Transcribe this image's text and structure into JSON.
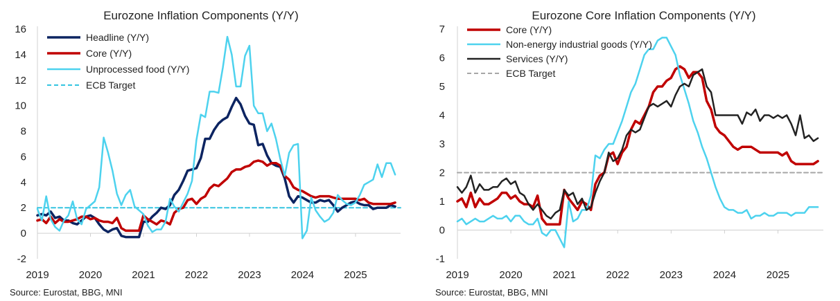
{
  "chart_data": [
    {
      "type": "line",
      "title": "Eurozone Inflation Components (Y/Y)",
      "source": "Source: Eurostat, BBG, MNI",
      "ylim": [
        -2,
        16
      ],
      "yticks": [
        -2,
        0,
        2,
        4,
        6,
        8,
        10,
        12,
        14,
        16
      ],
      "xlim": [
        2019.0,
        2025.85
      ],
      "xticks": [
        "2019",
        "2020",
        "2021",
        "2022",
        "2023",
        "2024",
        "2025"
      ],
      "legend_position": "top-left",
      "colors": {
        "headline": "#0c2461",
        "core": "#c00000",
        "unprocessed": "#4dd2ee",
        "target": "#33c4e0"
      },
      "series": [
        {
          "key": "headline",
          "name": "Headline (Y/Y)",
          "start": 2019.0,
          "step": 0.0833,
          "values": [
            1.4,
            1.5,
            1.4,
            1.7,
            1.2,
            1.3,
            1.0,
            1.0,
            0.8,
            0.7,
            1.0,
            1.3,
            1.4,
            1.2,
            0.7,
            0.3,
            0.1,
            0.3,
            0.4,
            -0.2,
            -0.3,
            -0.3,
            -0.3,
            -0.3,
            0.9,
            0.9,
            1.3,
            1.6,
            2.0,
            1.9,
            2.2,
            3.0,
            3.4,
            4.1,
            4.9,
            5.0,
            5.1,
            5.9,
            7.4,
            7.4,
            8.1,
            8.6,
            8.9,
            9.1,
            9.9,
            10.6,
            10.1,
            9.2,
            8.6,
            8.5,
            6.9,
            7.0,
            6.1,
            5.5,
            5.3,
            5.2,
            4.3,
            2.9,
            2.4,
            2.9,
            2.8,
            2.6,
            2.4,
            2.4,
            2.6,
            2.5,
            2.6,
            2.2,
            1.7,
            2.0,
            2.2,
            2.4,
            2.5,
            2.3,
            2.2,
            2.2,
            1.9,
            2.0,
            2.0,
            2.0,
            2.2,
            2.1
          ]
        },
        {
          "key": "core",
          "name": "Core (Y/Y)",
          "start": 2019.0,
          "step": 0.0833,
          "values": [
            1.0,
            1.1,
            0.8,
            1.3,
            0.8,
            1.1,
            0.9,
            0.9,
            1.0,
            1.1,
            1.3,
            1.3,
            1.1,
            1.2,
            1.0,
            0.9,
            0.9,
            0.8,
            1.2,
            0.4,
            0.2,
            0.2,
            0.2,
            0.2,
            1.4,
            1.1,
            0.9,
            0.7,
            1.0,
            0.9,
            0.7,
            1.6,
            1.9,
            2.0,
            2.6,
            2.7,
            2.3,
            2.7,
            2.9,
            3.5,
            3.8,
            3.7,
            4.0,
            4.3,
            4.8,
            5.0,
            5.0,
            5.2,
            5.3,
            5.6,
            5.7,
            5.6,
            5.3,
            5.5,
            5.5,
            5.3,
            4.5,
            4.2,
            3.6,
            3.4,
            3.3,
            3.1,
            2.9,
            2.8,
            2.9,
            2.9,
            2.9,
            2.8,
            2.7,
            2.7,
            2.7,
            2.7,
            2.7,
            2.6,
            2.7,
            2.4,
            2.3,
            2.3,
            2.3,
            2.3,
            2.3,
            2.4
          ]
        },
        {
          "key": "unprocessed",
          "name": "Unprocessed food (Y/Y)",
          "start": 2019.0,
          "step": 0.0833,
          "values": [
            1.9,
            1.0,
            2.9,
            1.1,
            0.5,
            0.2,
            1.0,
            1.4,
            2.5,
            1.1,
            0.7,
            1.9,
            2.2,
            2.5,
            3.6,
            7.5,
            6.3,
            4.9,
            3.1,
            2.2,
            3.0,
            3.4,
            2.1,
            1.8,
            1.5,
            0.6,
            0.1,
            0.3,
            0.3,
            0.9,
            2.7,
            2.1,
            1.7,
            2.4,
            3.1,
            4.1,
            7.3,
            9.3,
            9.1,
            11.1,
            11.1,
            11.0,
            13.0,
            15.4,
            14.0,
            11.5,
            11.5,
            13.9,
            14.7,
            10.0,
            9.4,
            9.4,
            8.0,
            8.6,
            7.4,
            5.8,
            4.5,
            6.3,
            6.9,
            7.0,
            -0.4,
            0.2,
            2.8,
            1.8,
            1.3,
            0.9,
            1.1,
            1.6,
            3.0,
            2.6,
            2.3,
            2.2,
            2.4,
            3.0,
            3.8,
            4.0,
            4.2,
            5.4,
            4.4,
            5.5,
            5.5,
            4.6
          ]
        },
        {
          "key": "target",
          "name": "ECB Target",
          "constant": 2
        }
      ]
    },
    {
      "type": "line",
      "title": "Eurozone Core Inflation Components (Y/Y)",
      "source": "Source: Eurostat, BBG, MNI",
      "ylim": [
        -1,
        7
      ],
      "yticks": [
        -1,
        0,
        1,
        2,
        3,
        4,
        5,
        6,
        7
      ],
      "xlim": [
        2019.0,
        2025.85
      ],
      "xticks": [
        "2019",
        "2020",
        "2021",
        "2022",
        "2023",
        "2024",
        "2025"
      ],
      "legend_position": "top-left",
      "colors": {
        "core": "#c00000",
        "nei": "#4dd2ee",
        "services": "#222222",
        "target": "#a6a6a6"
      },
      "series": [
        {
          "key": "core",
          "name": "Core (Y/Y)",
          "start": 2019.0,
          "step": 0.0833,
          "values": [
            1.0,
            1.1,
            0.8,
            1.3,
            0.8,
            1.1,
            0.9,
            0.9,
            1.0,
            1.1,
            1.3,
            1.3,
            1.1,
            1.2,
            1.0,
            0.9,
            0.9,
            0.8,
            1.2,
            0.4,
            0.2,
            0.2,
            0.2,
            0.2,
            1.4,
            1.1,
            0.9,
            0.7,
            1.0,
            0.9,
            0.7,
            1.6,
            1.9,
            2.0,
            2.6,
            2.7,
            2.3,
            2.7,
            2.9,
            3.5,
            3.8,
            3.7,
            4.0,
            4.3,
            4.8,
            5.0,
            5.0,
            5.2,
            5.3,
            5.6,
            5.7,
            5.6,
            5.3,
            5.5,
            5.5,
            5.3,
            4.5,
            4.2,
            3.6,
            3.4,
            3.3,
            3.1,
            2.9,
            2.8,
            2.9,
            2.9,
            2.9,
            2.8,
            2.7,
            2.7,
            2.7,
            2.7,
            2.7,
            2.6,
            2.7,
            2.4,
            2.3,
            2.3,
            2.3,
            2.3,
            2.3,
            2.4
          ]
        },
        {
          "key": "nei",
          "name": "Non-energy industrial goods (Y/Y)",
          "start": 2019.0,
          "step": 0.0833,
          "values": [
            0.3,
            0.4,
            0.2,
            0.3,
            0.4,
            0.3,
            0.3,
            0.4,
            0.5,
            0.4,
            0.4,
            0.5,
            0.3,
            0.5,
            0.5,
            0.3,
            0.2,
            0.2,
            0.4,
            -0.1,
            -0.2,
            0.0,
            0.0,
            -0.3,
            -0.6,
            1.0,
            0.3,
            0.4,
            0.7,
            0.7,
            1.2,
            2.6,
            2.5,
            2.8,
            3.0,
            3.0,
            3.4,
            3.8,
            4.3,
            4.8,
            5.1,
            5.6,
            6.1,
            6.3,
            6.3,
            6.6,
            6.7,
            6.7,
            6.4,
            6.1,
            5.4,
            4.9,
            4.4,
            3.8,
            3.4,
            2.9,
            2.5,
            2.0,
            1.5,
            1.1,
            0.8,
            0.7,
            0.7,
            0.6,
            0.6,
            0.7,
            0.4,
            0.5,
            0.5,
            0.6,
            0.5,
            0.5,
            0.6,
            0.6,
            0.6,
            0.5,
            0.6,
            0.6,
            0.6,
            0.8,
            0.8,
            0.8
          ]
        },
        {
          "key": "services",
          "name": "Services (Y/Y)",
          "start": 2019.0,
          "step": 0.0833,
          "values": [
            1.5,
            1.3,
            1.5,
            1.9,
            1.3,
            1.6,
            1.4,
            1.4,
            1.5,
            1.5,
            1.7,
            1.8,
            1.6,
            1.7,
            1.3,
            1.2,
            0.9,
            0.7,
            0.9,
            0.7,
            0.5,
            0.4,
            0.6,
            0.7,
            1.4,
            1.2,
            1.3,
            0.9,
            1.1,
            0.7,
            0.8,
            1.3,
            1.7,
            2.0,
            2.7,
            2.4,
            2.5,
            2.8,
            3.3,
            3.5,
            3.4,
            3.5,
            3.9,
            4.3,
            4.4,
            4.3,
            4.4,
            4.5,
            4.3,
            4.7,
            5.0,
            5.1,
            5.0,
            5.4,
            5.5,
            5.6,
            5.0,
            4.8,
            4.0,
            4.0,
            4.0,
            4.0,
            4.0,
            4.0,
            3.7,
            4.1,
            4.0,
            4.2,
            3.8,
            4.0,
            4.0,
            3.9,
            4.0,
            3.9,
            4.0,
            3.7,
            3.3,
            4.0,
            3.2,
            3.3,
            3.1,
            3.2
          ]
        },
        {
          "key": "target",
          "name": "ECB Target",
          "constant": 2
        }
      ]
    }
  ]
}
